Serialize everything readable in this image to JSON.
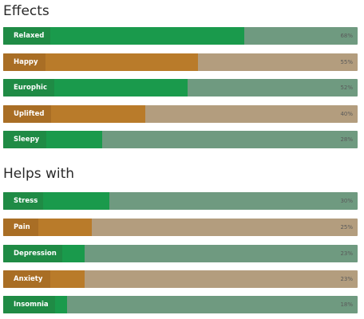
{
  "sections": [
    {
      "title": "Effects",
      "items": [
        {
          "label": "Relaxed",
          "percent_text": "68%",
          "value": 68,
          "color": "green"
        },
        {
          "label": "Happy",
          "percent_text": "55%",
          "value": 55,
          "color": "brown"
        },
        {
          "label": "Europhic",
          "percent_text": "52%",
          "value": 52,
          "color": "green"
        },
        {
          "label": "Uplifted",
          "percent_text": "40%",
          "value": 40,
          "color": "brown"
        },
        {
          "label": "Sleepy",
          "percent_text": "28%",
          "value": 28,
          "color": "green"
        }
      ]
    },
    {
      "title": "Helps with",
      "items": [
        {
          "label": "Stress",
          "percent_text": "30%",
          "value": 30,
          "color": "green"
        },
        {
          "label": "Pain",
          "percent_text": "25%",
          "value": 25,
          "color": "brown"
        },
        {
          "label": "Depression",
          "percent_text": "23%",
          "value": 23,
          "color": "green"
        },
        {
          "label": "Anxiety",
          "percent_text": "23%",
          "value": 23,
          "color": "brown"
        },
        {
          "label": "Insomnia",
          "percent_text": "18%",
          "value": 18,
          "color": "green"
        }
      ]
    }
  ],
  "colors": {
    "green_fill": "#1a9a4c",
    "green_track": "#6f9a80",
    "brown_fill": "#b97b2a",
    "brown_track": "#b39d7e"
  }
}
